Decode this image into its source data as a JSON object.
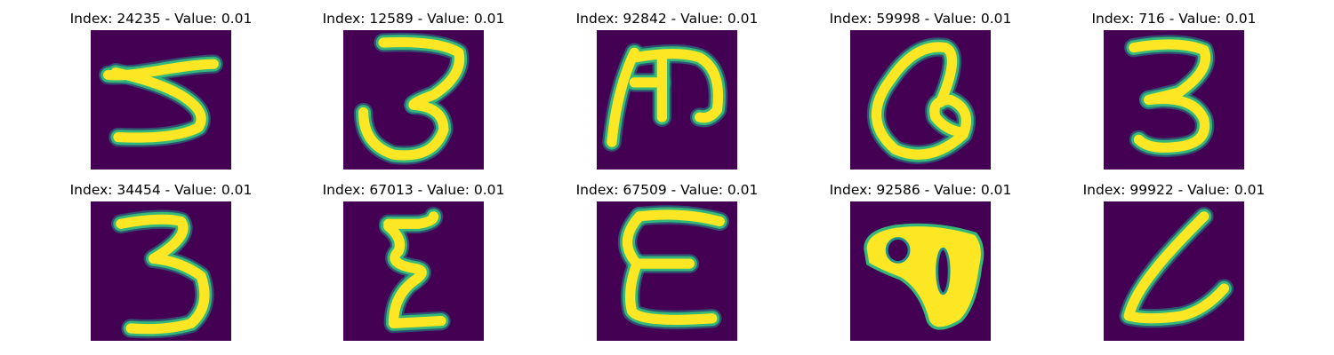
{
  "colors": {
    "background": "#ffffff",
    "image_background": "#440154",
    "stroke_core": "#fde725",
    "stroke_edge": "#35b779",
    "stroke_halo": "#21918c"
  },
  "panels": [
    {
      "title": "Index: 24235 - Value: 0.01",
      "glyph": "3-flat"
    },
    {
      "title": "Index: 12589 - Value: 0.01",
      "glyph": "3-round"
    },
    {
      "title": "Index: 92842 - Value: 0.01",
      "glyph": "m-stroke"
    },
    {
      "title": "Index: 59998 - Value: 0.01",
      "glyph": "a-loop"
    },
    {
      "title": "Index: 716 - Value: 0.01",
      "glyph": "3-tall"
    },
    {
      "title": "Index: 34454 - Value: 0.01",
      "glyph": "3-thin"
    },
    {
      "title": "Index: 67013 - Value: 0.01",
      "glyph": "z-squiggle"
    },
    {
      "title": "Index: 67509 - Value: 0.01",
      "glyph": "e-stroke"
    },
    {
      "title": "Index: 92586 - Value: 0.01",
      "glyph": "blob"
    },
    {
      "title": "Index: 99922 - Value: 0.01",
      "glyph": "l-curve"
    }
  ]
}
